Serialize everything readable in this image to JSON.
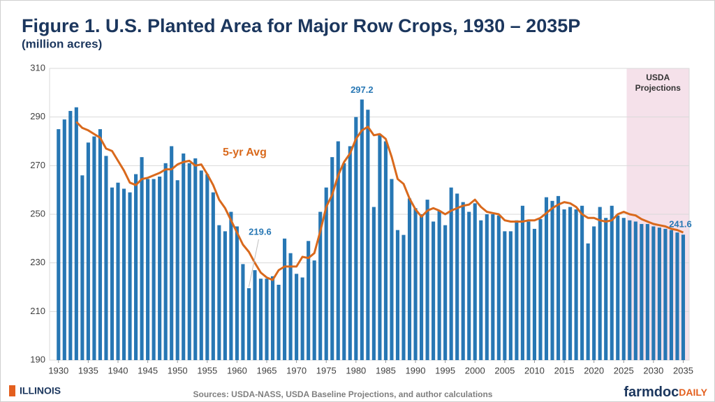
{
  "chart_data": {
    "type": "bar",
    "title": "Figure 1. U.S. Planted Area for Major Row Crops, 1930 – 2035P",
    "subtitle": "(million acres)",
    "x": [
      1930,
      1931,
      1932,
      1933,
      1934,
      1935,
      1936,
      1937,
      1938,
      1939,
      1940,
      1941,
      1942,
      1943,
      1944,
      1945,
      1946,
      1947,
      1948,
      1949,
      1950,
      1951,
      1952,
      1953,
      1954,
      1955,
      1956,
      1957,
      1958,
      1959,
      1960,
      1961,
      1962,
      1963,
      1964,
      1965,
      1966,
      1967,
      1968,
      1969,
      1970,
      1971,
      1972,
      1973,
      1974,
      1975,
      1976,
      1977,
      1978,
      1979,
      1980,
      1981,
      1982,
      1983,
      1984,
      1985,
      1986,
      1987,
      1988,
      1989,
      1990,
      1991,
      1992,
      1993,
      1994,
      1995,
      1996,
      1997,
      1998,
      1999,
      2000,
      2001,
      2002,
      2003,
      2004,
      2005,
      2006,
      2007,
      2008,
      2009,
      2010,
      2011,
      2012,
      2013,
      2014,
      2015,
      2016,
      2017,
      2018,
      2019,
      2020,
      2021,
      2022,
      2023,
      2024,
      2025,
      2026,
      2027,
      2028,
      2029,
      2030,
      2031,
      2032,
      2033,
      2034,
      2035
    ],
    "series": [
      {
        "color": "#2777b4",
        "values": [
          285,
          289,
          292.5,
          294,
          266,
          279.5,
          282,
          285,
          274,
          261,
          263,
          260.5,
          259,
          266.5,
          273.5,
          264.5,
          264.5,
          265.5,
          271,
          278,
          264,
          275,
          271,
          273,
          268,
          266.5,
          259,
          245.5,
          243,
          251,
          245,
          229.5,
          219.6,
          227,
          223.5,
          223.5,
          224.5,
          221,
          240,
          234,
          225.5,
          224,
          239,
          231,
          251,
          261,
          273.5,
          280,
          271,
          278,
          290,
          297.2,
          293,
          253,
          282.5,
          280,
          264.5,
          243.5,
          241.5,
          256.5,
          252.5,
          250,
          256,
          247,
          251.5,
          245.5,
          261,
          258.5,
          255,
          251,
          254.5,
          247.5,
          250,
          250,
          249.5,
          243,
          243,
          247.5,
          253.5,
          247,
          244,
          248,
          257,
          255.5,
          257.5,
          252,
          253,
          252,
          253.5,
          238,
          245,
          253,
          248.5,
          253.5,
          249.5,
          248.5,
          247.5,
          247,
          246,
          246,
          245,
          244.5,
          244,
          243.5,
          242.5,
          241.6
        ]
      },
      {
        "name": "5-yr Avg",
        "color": "#d9691c",
        "values": [
          null,
          null,
          null,
          288,
          285.5,
          284.5,
          283,
          281.5,
          277,
          276,
          272,
          268,
          263,
          262,
          264.5,
          265,
          266,
          267,
          268.5,
          268.5,
          270.5,
          271.5,
          272,
          270,
          270.5,
          266.5,
          262,
          256,
          252.5,
          247.5,
          242.5,
          237.5,
          234.5,
          230,
          226,
          224,
          223,
          227,
          228.5,
          228.5,
          228.5,
          232.5,
          232,
          234,
          243,
          253,
          258,
          266,
          271.5,
          275,
          281,
          284.5,
          286,
          282.5,
          283,
          281,
          273.5,
          264.5,
          262.5,
          256.5,
          252,
          249,
          251.5,
          252.5,
          251.5,
          250,
          251.5,
          252.5,
          253.5,
          254,
          256,
          253,
          251,
          250.5,
          250,
          247.5,
          247,
          247,
          247,
          247.5,
          247.5,
          248.5,
          250.5,
          252.5,
          254,
          255,
          254.5,
          253,
          250,
          248.5,
          248.5,
          247.5,
          247,
          247.5,
          250,
          251,
          250,
          249.5,
          248,
          247,
          246,
          245.5,
          245,
          244,
          243.5,
          242.5
        ]
      }
    ],
    "xlim": [
      1928.5,
      2036
    ],
    "xticks": [
      1930,
      1935,
      1940,
      1945,
      1950,
      1955,
      1960,
      1965,
      1970,
      1975,
      1980,
      1985,
      1990,
      1995,
      2000,
      2005,
      2010,
      2015,
      2020,
      2025,
      2030,
      2035
    ],
    "ylim": [
      190,
      310
    ],
    "yticks": [
      190,
      210,
      230,
      250,
      270,
      290,
      310
    ],
    "grid": true,
    "projection_region": {
      "from": 2025.5,
      "to": 2036,
      "color": "#f5e1ea",
      "label": "USDA Projections"
    }
  },
  "footer": {
    "logo": "ILLINOIS",
    "source": "Sources: USDA-NASS, USDA Baseline Projections, and author calculations",
    "brand": "farmdoc",
    "brand_suffix": "DAILY"
  }
}
